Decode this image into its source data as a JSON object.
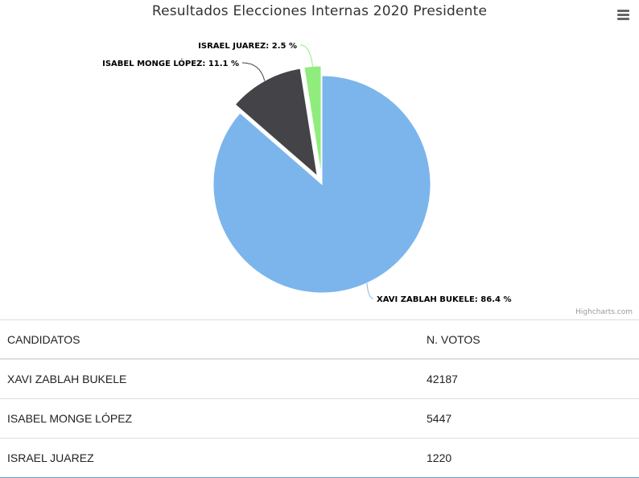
{
  "chart_data": {
    "type": "pie",
    "title": "Resultados Elecciones Internas 2020 Presidente",
    "series": [
      {
        "name": "XAVI ZABLAH BUKELE",
        "value": 86.4,
        "label": "XAVI ZABLAH BUKELE: 86.4 %",
        "color": "#7cb5ec"
      },
      {
        "name": "ISABEL MONGE LÓPEZ",
        "value": 11.1,
        "label": "ISABEL MONGE LÓPEZ: 11.1 %",
        "color": "#434348"
      },
      {
        "name": "ISRAEL JUAREZ",
        "value": 2.5,
        "label": "ISRAEL JUAREZ: 2.5 %",
        "color": "#90ed7d"
      }
    ]
  },
  "credits": "Highcharts.com",
  "menu_icon": "hamburger-menu-icon",
  "table": {
    "headers": [
      "CANDIDATOS",
      "N. VOTOS"
    ],
    "rows": [
      [
        "XAVI ZABLAH BUKELE",
        "42187"
      ],
      [
        "ISABEL MONGE LÓPEZ",
        "5447"
      ],
      [
        "ISRAEL JUAREZ",
        "1220"
      ]
    ]
  }
}
